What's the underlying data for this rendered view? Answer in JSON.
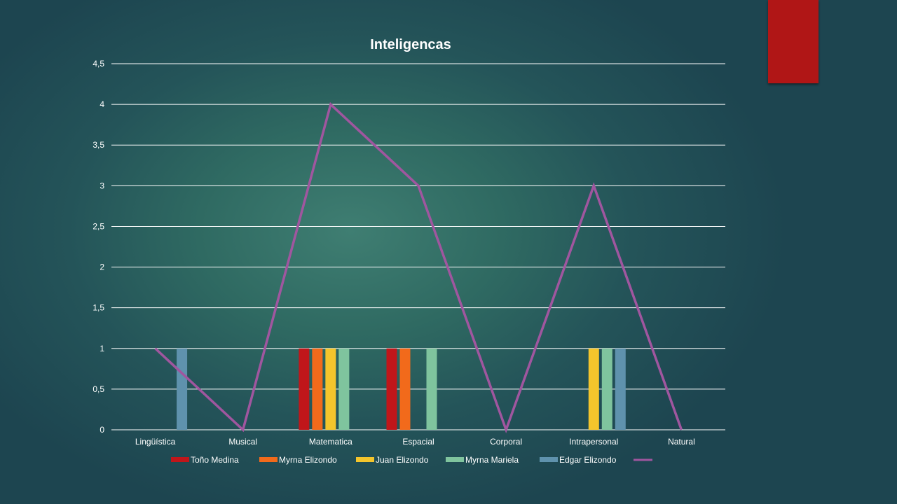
{
  "decor": {
    "accent_color": "#b01616"
  },
  "chart_data": {
    "type": "bar",
    "title": "Inteligencas",
    "categories": [
      "Lingüística",
      "Musical",
      "Matematica",
      "Espacial",
      "Corporal",
      "Intrapersonal",
      "Natural"
    ],
    "ylim": [
      0,
      4.5
    ],
    "y_ticks": [
      "0",
      "0,5",
      "1",
      "1,5",
      "2",
      "2,5",
      "3",
      "3,5",
      "4",
      "4,5"
    ],
    "grid": true,
    "legend_position": "bottom",
    "series": [
      {
        "name": "Toño Medina",
        "color": "#c0161a",
        "values": [
          0,
          0,
          1,
          1,
          0,
          0,
          0
        ]
      },
      {
        "name": "Myrna Elizondo",
        "color": "#f26a1b",
        "values": [
          0,
          0,
          1,
          1,
          0,
          0,
          0
        ]
      },
      {
        "name": "Juan Elizondo",
        "color": "#f4c52c",
        "values": [
          0,
          0,
          1,
          0,
          0,
          1,
          0
        ]
      },
      {
        "name": "Myrna Mariela",
        "color": "#7fc49e",
        "values": [
          0,
          0,
          1,
          1,
          0,
          1,
          0
        ]
      },
      {
        "name": "Edgar Elizondo",
        "color": "#5f92ad",
        "values": [
          1,
          0,
          0,
          0,
          0,
          1,
          0
        ]
      }
    ],
    "line_series": {
      "name": "",
      "color": "#a0569f",
      "values": [
        1,
        0,
        4,
        3,
        0,
        3,
        0
      ]
    }
  }
}
